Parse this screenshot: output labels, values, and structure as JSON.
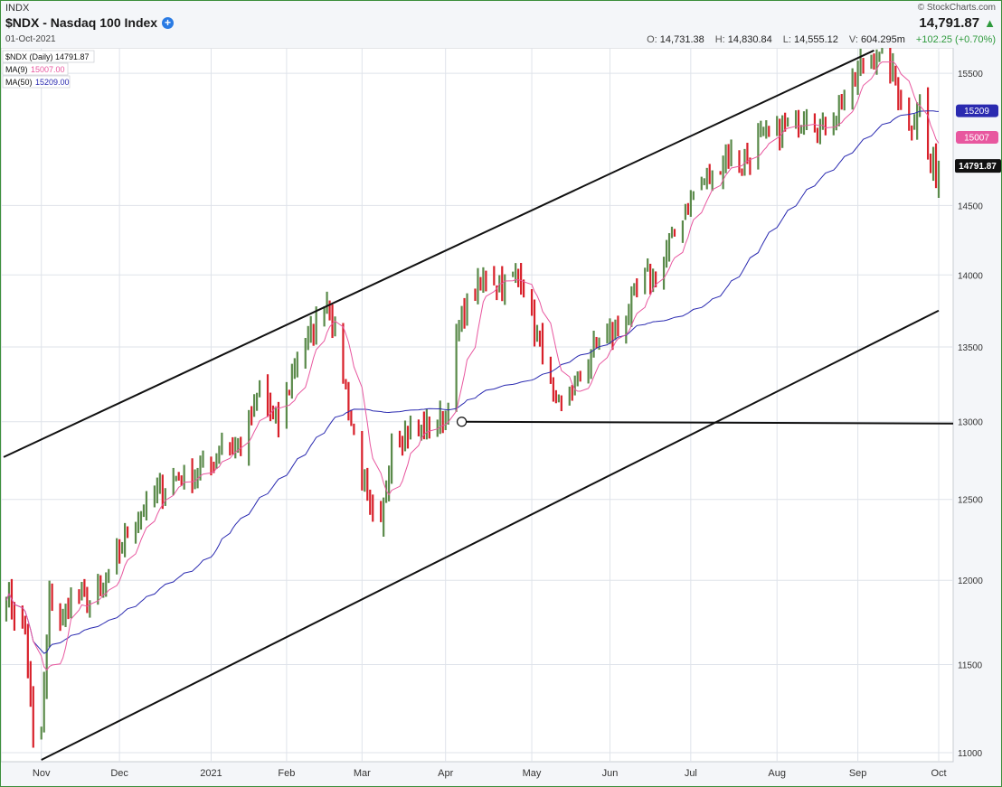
{
  "header": {
    "symbol_small": "INDX",
    "title": "$NDX - Nasdaq 100 Index",
    "date": "01-Oct-2021",
    "copyright": "© StockCharts.com",
    "last_price": "14,791.87",
    "open": "14,731.38",
    "high": "14,830.84",
    "low": "14,555.12",
    "volume": "604.295m",
    "change": "+102.25 (+0.70%)",
    "labels": {
      "open": "O:",
      "high": "H:",
      "low": "L:",
      "volume": "V:"
    }
  },
  "legend": {
    "main": "$NDX (Daily) 14791.87",
    "ma9_name": "MA(9)",
    "ma9_value": "15007.00",
    "ma50_name": "MA(50)",
    "ma50_value": "15209.00"
  },
  "price_tags": {
    "ma50": "15209",
    "ma9": "15007",
    "last": "14791.87"
  },
  "colors": {
    "up": "#5a8a4a",
    "down": "#d8202a",
    "ma9": "#e8579f",
    "ma50": "#2a2ab0",
    "trendline": "#111111",
    "grid": "#dfe3ea",
    "plot_bg": "#ffffff",
    "frame": "#3b8f3b"
  },
  "chart_data": {
    "type": "ohlc_bar",
    "symbol": "$NDX",
    "timeframe": "Daily",
    "date_range": [
      "2020-10-19",
      "2021-10-01"
    ],
    "ylim": [
      10950,
      15700
    ],
    "y_scale": "log",
    "y_ticks": [
      11000,
      11500,
      12000,
      12500,
      13000,
      13500,
      14000,
      14500,
      15500
    ],
    "x_tick_labels": [
      "Nov",
      "Dec",
      "2021",
      "Feb",
      "Mar",
      "Apr",
      "May",
      "Jun",
      "Jul",
      "Aug",
      "Sep",
      "Oct"
    ],
    "grid": true,
    "price_path": [
      [
        "2020-10-20",
        11950
      ],
      [
        "2020-10-23",
        11800
      ],
      [
        "2020-10-27",
        11700
      ],
      [
        "2020-10-30",
        11050
      ],
      [
        "2020-11-02",
        11100
      ],
      [
        "2020-11-05",
        11900
      ],
      [
        "2020-11-10",
        11750
      ],
      [
        "2020-11-13",
        11900
      ],
      [
        "2020-11-20",
        11850
      ],
      [
        "2020-11-27",
        12000
      ],
      [
        "2020-12-04",
        12300
      ],
      [
        "2020-12-11",
        12450
      ],
      [
        "2020-12-18",
        12600
      ],
      [
        "2020-12-24",
        12650
      ],
      [
        "2021-01-04",
        12700
      ],
      [
        "2021-01-08",
        12900
      ],
      [
        "2021-01-15",
        12850
      ],
      [
        "2021-01-22",
        13200
      ],
      [
        "2021-01-29",
        12950
      ],
      [
        "2021-02-05",
        13450
      ],
      [
        "2021-02-12",
        13650
      ],
      [
        "2021-02-16",
        13850
      ],
      [
        "2021-02-19",
        13600
      ],
      [
        "2021-02-25",
        13000
      ],
      [
        "2021-03-04",
        12400
      ],
      [
        "2021-03-08",
        12300
      ],
      [
        "2021-03-12",
        12900
      ],
      [
        "2021-03-19",
        12950
      ],
      [
        "2021-03-26",
        12950
      ],
      [
        "2021-04-01",
        13050
      ],
      [
        "2021-04-05",
        13550
      ],
      [
        "2021-04-09",
        13800
      ],
      [
        "2021-04-16",
        14000
      ],
      [
        "2021-04-23",
        13950
      ],
      [
        "2021-04-29",
        14000
      ],
      [
        "2021-05-04",
        13600
      ],
      [
        "2021-05-07",
        13500
      ],
      [
        "2021-05-12",
        13050
      ],
      [
        "2021-05-18",
        13200
      ],
      [
        "2021-05-21",
        13300
      ],
      [
        "2021-05-28",
        13550
      ],
      [
        "2021-06-04",
        13600
      ],
      [
        "2021-06-11",
        13900
      ],
      [
        "2021-06-18",
        14000
      ],
      [
        "2021-06-25",
        14300
      ],
      [
        "2021-07-02",
        14600
      ],
      [
        "2021-07-09",
        14700
      ],
      [
        "2021-07-14",
        14900
      ],
      [
        "2021-07-20",
        14800
      ],
      [
        "2021-07-26",
        15000
      ],
      [
        "2021-08-04",
        15050
      ],
      [
        "2021-08-13",
        15200
      ],
      [
        "2021-08-19",
        15050
      ],
      [
        "2021-08-27",
        15300
      ],
      [
        "2021-09-03",
        15600
      ],
      [
        "2021-09-07",
        15650
      ],
      [
        "2021-09-14",
        15500
      ],
      [
        "2021-09-20",
        15050
      ],
      [
        "2021-09-24",
        15300
      ],
      [
        "2021-09-28",
        14750
      ],
      [
        "2021-10-01",
        14791.87
      ]
    ],
    "last_bar": {
      "date": "2021-10-01",
      "open": 14731.38,
      "high": 14830.84,
      "low": 14555.12,
      "close": 14791.87
    },
    "moving_averages": [
      {
        "name": "MA(9)",
        "period": 9,
        "last": 15007.0
      },
      {
        "name": "MA(50)",
        "period": 50,
        "last": 15209.0
      }
    ],
    "annotations": [
      {
        "type": "trendline",
        "role": "channel-upper",
        "points": [
          [
            "2020-10-19",
            12770
          ],
          [
            "2021-09-07",
            15680
          ]
        ]
      },
      {
        "type": "trendline",
        "role": "channel-lower",
        "points": [
          [
            "2020-11-02",
            10960
          ],
          [
            "2021-10-01",
            13750
          ]
        ]
      },
      {
        "type": "horizontal-line",
        "start": "2021-04-07",
        "value": 13000
      }
    ]
  }
}
